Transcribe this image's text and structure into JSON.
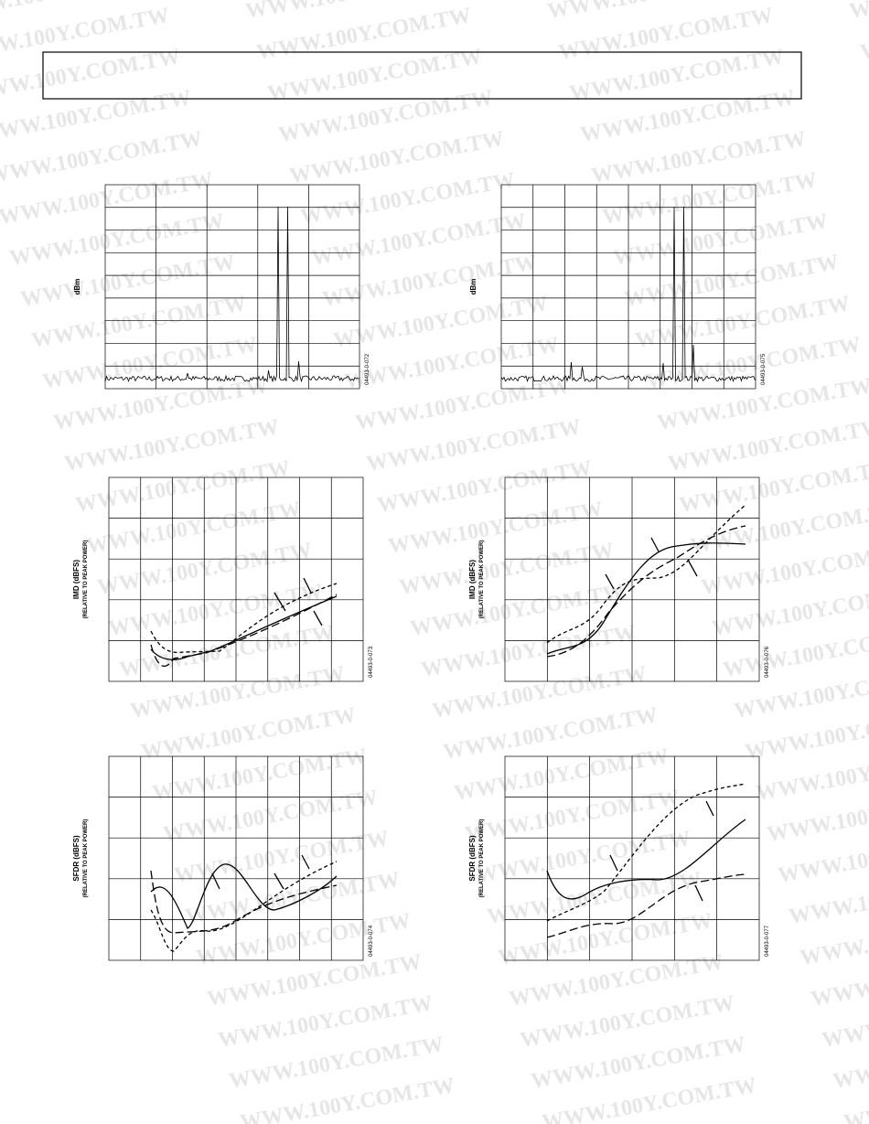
{
  "watermark": "WWW.100Y.COM.TW",
  "figures": [
    {
      "y_label": "dBm",
      "code": "04493-0-072"
    },
    {
      "y_label": "dBm",
      "code": "04493-0-075"
    },
    {
      "y_label": "IMD (dBFS)",
      "y_sublabel": "(RELATIVE TO PEAK POWER)",
      "code": "04493-0-073"
    },
    {
      "y_label": "IMD (dBFS)",
      "y_sublabel": "(RELATIVE TO PEAK POWER)",
      "code": "04493-0-076"
    },
    {
      "y_label": "SFDR (dBFS)",
      "y_sublabel": "(RELATIVE TO PEAK POWER)",
      "code": "04493-0-074"
    },
    {
      "y_label": "SFDR (dBFS)",
      "y_sublabel": "(RELATIVE TO PEAK POWER)",
      "code": "04493-0-077"
    }
  ]
}
